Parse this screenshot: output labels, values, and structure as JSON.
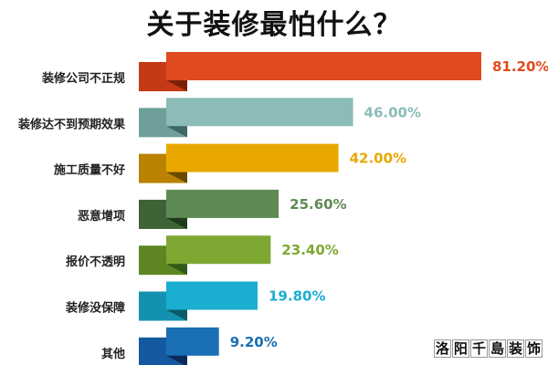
{
  "chart_data": {
    "type": "bar",
    "orientation": "horizontal",
    "title": "关于装修最怕什么？",
    "categories": [
      "装修公司不正规",
      "装修达不到预期效果",
      "施工质量不好",
      "恶意增项",
      "报价不透明",
      "装修没保障",
      "其他"
    ],
    "values": [
      81.2,
      46.0,
      42.0,
      25.6,
      23.4,
      19.8,
      9.2
    ],
    "value_labels": [
      "81.20%",
      "46.00%",
      "42.00%",
      "25.60%",
      "23.40%",
      "19.80%",
      "9.20%"
    ],
    "colors": [
      "#e04a1f",
      "#8bbcb8",
      "#e8a800",
      "#5e8a55",
      "#7ea832",
      "#1aaed0",
      "#1a6fb5"
    ],
    "back_colors": [
      "#c43a15",
      "#6f9f9b",
      "#b98200",
      "#3f6236",
      "#5f8522",
      "#1392b0",
      "#1459a0"
    ],
    "fold_colors": [
      "#7a2208",
      "#3f6663",
      "#6a4a00",
      "#1f3a1a",
      "#2f5a1a",
      "#0b5a68",
      "#0a2a5a"
    ],
    "grid": false,
    "legend": "none"
  },
  "watermark": "洛阳千島装饰"
}
